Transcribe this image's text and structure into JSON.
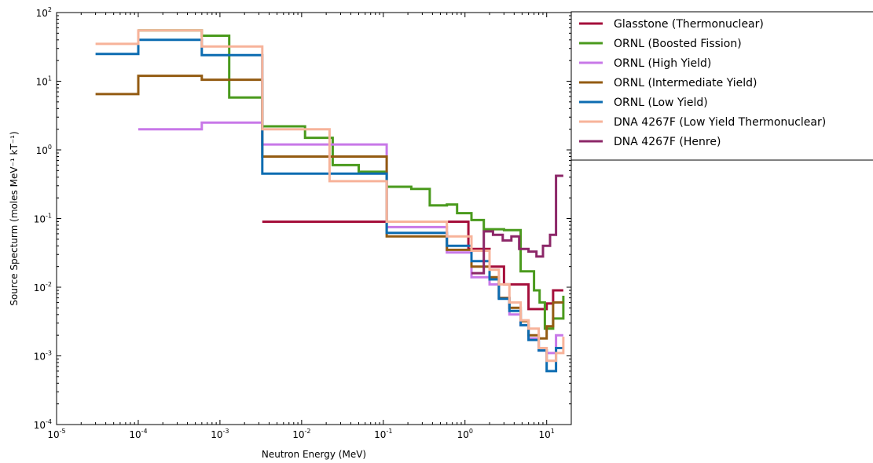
{
  "chart_data": {
    "type": "line",
    "step": "post",
    "xscale": "log",
    "yscale": "log",
    "xlim": [
      1e-05,
      20
    ],
    "ylim": [
      0.0001,
      100
    ],
    "xlabel": "Neutron Energy (MeV)",
    "ylabel": "Source Specturm (moles MeV⁻¹ kT⁻¹)",
    "xticks": [
      {
        "value": 1e-05,
        "base": "10",
        "exp": "-5"
      },
      {
        "value": 0.0001,
        "base": "10",
        "exp": "-4"
      },
      {
        "value": 0.001,
        "base": "10",
        "exp": "-3"
      },
      {
        "value": 0.01,
        "base": "10",
        "exp": "-2"
      },
      {
        "value": 0.1,
        "base": "10",
        "exp": "-1"
      },
      {
        "value": 1,
        "base": "10",
        "exp": "0"
      },
      {
        "value": 10,
        "base": "10",
        "exp": "1"
      }
    ],
    "yticks": [
      {
        "value": 0.0001,
        "base": "10",
        "exp": "-4"
      },
      {
        "value": 0.001,
        "base": "10",
        "exp": "-3"
      },
      {
        "value": 0.01,
        "base": "10",
        "exp": "-2"
      },
      {
        "value": 0.1,
        "base": "10",
        "exp": "-1"
      },
      {
        "value": 1,
        "base": "10",
        "exp": "0"
      },
      {
        "value": 10,
        "base": "10",
        "exp": "1"
      },
      {
        "value": 100,
        "base": "10",
        "exp": "2"
      }
    ],
    "grid": false,
    "legend_position": "outside-right",
    "series": [
      {
        "name": "Glasstone (Thermonuclear)",
        "color": "#a50f3b",
        "x": [
          0.0033,
          1.1,
          2.0,
          3.0,
          6.0,
          10.0,
          12.0,
          16.0
        ],
        "y": [
          0.09,
          0.036,
          0.02,
          0.011,
          0.0048,
          0.0058,
          0.009,
          0.009
        ]
      },
      {
        "name": "ORNL (Boosted Fission)",
        "color": "#4a9a1d",
        "x": [
          0.0001,
          0.0006,
          0.0013,
          0.0033,
          0.011,
          0.024,
          0.05,
          0.11,
          0.22,
          0.37,
          0.6,
          0.8,
          1.2,
          1.7,
          3.0,
          4.8,
          7.0,
          8.2,
          9.5,
          12.0,
          16.0
        ],
        "y": [
          55,
          46,
          5.8,
          2.2,
          1.5,
          0.6,
          0.48,
          0.29,
          0.27,
          0.155,
          0.16,
          0.12,
          0.095,
          0.07,
          0.068,
          0.017,
          0.009,
          0.006,
          0.0025,
          0.0035,
          0.0075
        ]
      },
      {
        "name": "ORNL (High Yield)",
        "color": "#c878e8",
        "x": [
          0.0001,
          0.0006,
          0.0033,
          0.11,
          0.6,
          1.2,
          2.0,
          2.6,
          3.5,
          4.8,
          6.0,
          8.0,
          10.0,
          13.0,
          16.0
        ],
        "y": [
          2.0,
          2.5,
          1.2,
          0.075,
          0.032,
          0.014,
          0.011,
          0.007,
          0.004,
          0.0028,
          0.0018,
          0.0012,
          0.0011,
          0.002,
          0.002
        ]
      },
      {
        "name": "ORNL (Intermediate Yield)",
        "color": "#935b12",
        "x": [
          3e-05,
          0.0001,
          0.0006,
          0.0033,
          0.11,
          0.6,
          1.2,
          2.0,
          2.6,
          3.5,
          4.8,
          6.0,
          8.0,
          10.0,
          12.0,
          16.0
        ],
        "y": [
          6.5,
          12,
          10.5,
          0.8,
          0.055,
          0.035,
          0.02,
          0.014,
          0.007,
          0.005,
          0.0032,
          0.002,
          0.0018,
          0.0027,
          0.006,
          0.006
        ]
      },
      {
        "name": "ORNL (Low Yield)",
        "color": "#0c6cb1",
        "x": [
          3e-05,
          0.0001,
          0.0006,
          0.0033,
          0.11,
          0.6,
          1.2,
          2.0,
          2.6,
          3.5,
          4.8,
          6.0,
          8.0,
          10.0,
          13.0,
          16.0
        ],
        "y": [
          25,
          40,
          24,
          0.45,
          0.062,
          0.04,
          0.024,
          0.013,
          0.0068,
          0.0045,
          0.0028,
          0.0017,
          0.0012,
          0.0006,
          0.0013,
          0.0013
        ]
      },
      {
        "name": "DNA 4267F (Low Yield Thermonuclear)",
        "color": "#f7b39a",
        "x": [
          3e-05,
          0.0001,
          0.0006,
          0.0033,
          0.022,
          0.11,
          0.6,
          1.2,
          2.0,
          2.6,
          3.5,
          4.8,
          6.0,
          8.0,
          10.0,
          13.0,
          16.0
        ],
        "y": [
          35,
          55,
          32,
          2.0,
          0.35,
          0.09,
          0.055,
          0.034,
          0.018,
          0.011,
          0.006,
          0.0033,
          0.0025,
          0.0013,
          0.00085,
          0.0011,
          0.0019
        ]
      },
      {
        "name": "DNA 4267F (Henre)",
        "color": "#8c2768",
        "x": [
          1.2,
          1.7,
          2.2,
          2.9,
          3.7,
          4.6,
          6.0,
          7.5,
          9.0,
          11.0,
          13.0,
          16.0
        ],
        "y": [
          0.016,
          0.065,
          0.058,
          0.048,
          0.055,
          0.036,
          0.033,
          0.028,
          0.04,
          0.058,
          0.42,
          0.42
        ]
      }
    ]
  }
}
